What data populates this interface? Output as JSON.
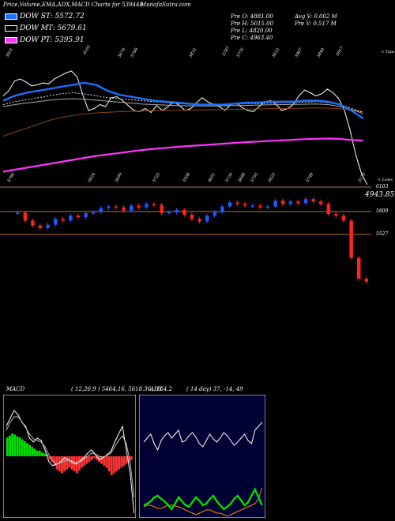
{
  "header": {
    "title": "Price,Volume,EMA,ADX,MACD Charts for 539448",
    "site": "MunafaSutra.com"
  },
  "legend": [
    {
      "label": "DOW ST: 5572.72",
      "color": "#1e6fff"
    },
    {
      "label": "DOW MT: 5679.61",
      "color": "#000000"
    },
    {
      "label": "DOW PT: 5395.91",
      "color": "#ff33ff"
    }
  ],
  "ohlc": {
    "open": "Pre O: 4881.00",
    "high": "Pre H: 5015.00",
    "low": "Pre L: 4820.00",
    "close": "Pre C: 4963.40",
    "avg_vol": "Avg V: 0.002 M",
    "pre_vol": "Pre V: 0.517 M"
  },
  "upper_labels": {
    "top_tag": "< Tops",
    "low_tag": "< Lows",
    "last_price": "4943.85",
    "highs": [
      "5931",
      "6101",
      "5670",
      "5799",
      "5832",
      "5787",
      "5776",
      "5633",
      "5907",
      "5849",
      "5917"
    ],
    "lows": [
      "5796",
      "5624",
      "5650",
      "5725",
      "5558",
      "5651",
      "5736",
      "5848",
      "5755",
      "5625",
      "5749",
      "5175"
    ]
  },
  "levels": {
    "r1": "6103",
    "r2": "5809",
    "r3": "5527"
  },
  "macd": {
    "title": "MACD",
    "params": "( 12,26,9 ) 5464.16,  5618.36,  -154.2"
  },
  "adx": {
    "title": "ADX",
    "params": "( 14  day) 37,  -14,  49"
  },
  "colors": {
    "up": "#2255ff",
    "down": "#ff2222",
    "ema_st": "#1e6fff",
    "ema_pt": "#ff33ff",
    "ema_brown": "#8b4513",
    "level": "#b8733b",
    "macd_pos": "#00e000",
    "macd_neg": "#ff3333",
    "adx_green": "#00dd00",
    "adx_orange": "#ff8800",
    "adx_bg": "#000033"
  },
  "chart_data": {
    "type": "line",
    "title": "Price,Volume,EMA,ADX,MACD Charts for 539448",
    "series": [
      {
        "name": "DOW ST",
        "last": 5572.72
      },
      {
        "name": "DOW MT",
        "last": 5679.61
      },
      {
        "name": "DOW PT",
        "last": 5395.91
      }
    ],
    "prev_session": {
      "open": 4881.0,
      "high": 5015.0,
      "low": 4820.0,
      "close": 4963.4,
      "volume_m": 0.517,
      "avg_volume_m": 0.002
    },
    "last_price": 4943.85,
    "levels": [
      6103,
      5809,
      5527
    ],
    "candles_close": [
      5796,
      5700,
      5640,
      5610,
      5650,
      5720,
      5700,
      5760,
      5740,
      5790,
      5800,
      5850,
      5870,
      5860,
      5820,
      5880,
      5860,
      5900,
      5890,
      5790,
      5800,
      5830,
      5770,
      5720,
      5690,
      5760,
      5800,
      5870,
      5920,
      5900,
      5880,
      5880,
      5860,
      5870,
      5940,
      5900,
      5930,
      5910,
      5960,
      5930,
      5900,
      5780,
      5760,
      5700,
      5250,
      5000,
      4963
    ],
    "macd_values": {
      "macd": 5464.16,
      "signal": 5618.36,
      "hist": -154.2
    },
    "adx_values": {
      "period": 14,
      "adx": 37,
      "di_minus": -14,
      "di_plus": 49
    }
  }
}
